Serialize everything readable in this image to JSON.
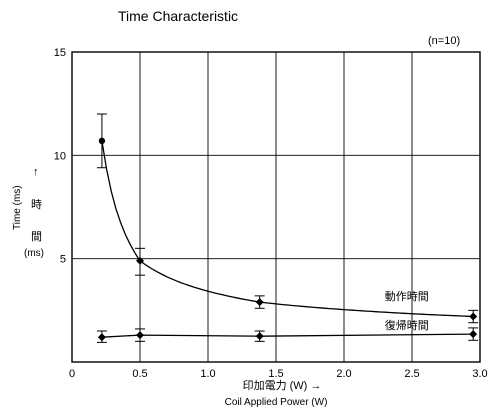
{
  "chart_data": {
    "type": "line",
    "title": "Time Characteristic",
    "annotation_n": "(n=10)",
    "xlabel_jp": "印加電力 (W) →",
    "xlabel_en": "Coil Applied Power (W)",
    "ylabel_en": "Time (ms)",
    "ylabel_arrow": "↑",
    "ylabel_jp_1": "時",
    "ylabel_jp_2": "間",
    "ylabel_unit": "(ms)",
    "xlim": [
      0,
      3.0
    ],
    "ylim": [
      0,
      15
    ],
    "x_ticks": [
      "0",
      "0.5",
      "1.0",
      "1.5",
      "2.0",
      "2.5",
      "3.0"
    ],
    "y_ticks": [
      "5",
      "10",
      "15"
    ],
    "grid": true,
    "series": [
      {
        "name": "動作時間",
        "points": [
          {
            "x": 0.22,
            "y": 10.7,
            "err_low": 9.4,
            "err_high": 12.0
          },
          {
            "x": 0.5,
            "y": 4.9,
            "err_low": 4.2,
            "err_high": 5.5
          },
          {
            "x": 1.38,
            "y": 2.9,
            "err_low": 2.6,
            "err_high": 3.2
          },
          {
            "x": 2.95,
            "y": 2.2,
            "err_low": 1.9,
            "err_high": 2.5
          }
        ],
        "label_at": {
          "x": 2.3,
          "y": 3.0
        }
      },
      {
        "name": "復帰時間",
        "points": [
          {
            "x": 0.22,
            "y": 1.2,
            "err_low": 0.95,
            "err_high": 1.5
          },
          {
            "x": 0.5,
            "y": 1.3,
            "err_low": 1.0,
            "err_high": 1.6
          },
          {
            "x": 1.38,
            "y": 1.25,
            "err_low": 1.0,
            "err_high": 1.5
          },
          {
            "x": 2.95,
            "y": 1.35,
            "err_low": 1.05,
            "err_high": 1.65
          }
        ],
        "label_at": {
          "x": 2.3,
          "y": 1.6
        }
      }
    ]
  }
}
